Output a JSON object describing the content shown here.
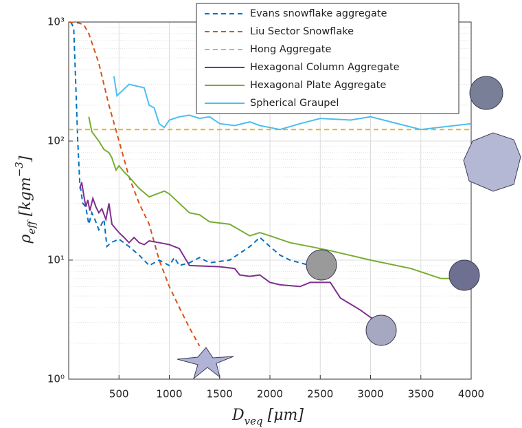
{
  "chart_data": {
    "type": "line",
    "x_label": [
      "D",
      "veq",
      " [μm]"
    ],
    "y_label": [
      "ρ",
      "eff",
      " [kgm",
      "−3",
      "]"
    ],
    "xlim": [
      0,
      4000
    ],
    "xticks": [
      500,
      1000,
      1500,
      2000,
      2500,
      3000,
      3500,
      4000
    ],
    "ylim": [
      1,
      1000
    ],
    "yscale": "log",
    "yticks": [
      {
        "value": 1,
        "label": "10⁰"
      },
      {
        "value": 10,
        "label": "10¹"
      },
      {
        "value": 100,
        "label": "10²"
      },
      {
        "value": 1000,
        "label": "10³"
      }
    ],
    "grid": true,
    "legend": "upper right",
    "series": [
      {
        "name": "Evans snowflake aggregate",
        "color": "#0072bd",
        "linestyle": "dashed",
        "x": [
          20,
          50,
          70,
          90,
          110,
          140,
          170,
          200,
          230,
          260,
          300,
          350,
          380,
          420,
          500,
          600,
          700,
          800,
          900,
          1000,
          1050,
          1100,
          1200,
          1300,
          1400,
          1600,
          1800,
          1900,
          2000,
          2100,
          2200,
          2300,
          2400
        ],
        "values": [
          1000,
          900,
          300,
          100,
          45,
          30,
          28,
          20,
          25,
          22,
          18,
          22,
          13,
          14,
          15,
          13,
          11,
          9,
          10,
          9,
          10.5,
          9,
          9.5,
          10.5,
          9.5,
          10,
          13,
          15.5,
          13,
          11,
          10,
          9.5,
          9
        ]
      },
      {
        "name": "Liu Sector Snowflake",
        "color": "#d95319",
        "linestyle": "dashed",
        "x": [
          0,
          100,
          150,
          200,
          300,
          400,
          500,
          600,
          700,
          800,
          900,
          1000,
          1100,
          1200,
          1300
        ],
        "values": [
          1000,
          980,
          950,
          800,
          450,
          200,
          100,
          50,
          30,
          20,
          10,
          6,
          4,
          2.7,
          1.9
        ]
      },
      {
        "name": "Hong Aggregate",
        "color": "#edb120",
        "linestyle": "dashed",
        "x": [
          0,
          4000
        ],
        "values": [
          125,
          125
        ]
      },
      {
        "name": "Hexagonal Column Aggregate",
        "color": "#7e2f8e",
        "linestyle": "solid",
        "x": [
          110,
          130,
          150,
          170,
          190,
          210,
          240,
          270,
          300,
          330,
          370,
          400,
          430,
          500,
          550,
          600,
          650,
          700,
          750,
          800,
          900,
          1000,
          1100,
          1200,
          1500,
          1650,
          1700,
          1800,
          1900,
          2000,
          2100,
          2300,
          2400,
          2600,
          2700,
          2900,
          3000,
          3100
        ],
        "values": [
          40,
          45,
          35,
          28,
          32,
          26,
          33,
          28,
          25,
          27,
          22,
          30,
          20,
          17,
          15.5,
          14,
          15.5,
          14,
          13.5,
          14.5,
          14,
          13.5,
          12.5,
          9,
          8.8,
          8.5,
          7.5,
          7.3,
          7.5,
          6.5,
          6.2,
          6,
          6.5,
          6.5,
          4.8,
          3.8,
          3.3,
          3
        ]
      },
      {
        "name": "Hexagonal Plate Aggregate",
        "color": "#77ac30",
        "linestyle": "solid",
        "x": [
          200,
          230,
          300,
          350,
          400,
          430,
          470,
          500,
          550,
          600,
          700,
          800,
          950,
          1000,
          1200,
          1300,
          1400,
          1600,
          1800,
          1900,
          2000,
          2200,
          2400,
          2600,
          3000,
          3400,
          3700,
          4000
        ],
        "values": [
          160,
          120,
          100,
          85,
          80,
          72,
          57,
          62,
          55,
          50,
          40,
          34,
          38,
          36,
          25,
          24,
          21,
          20,
          16,
          17,
          16,
          14,
          13,
          12,
          10,
          8.5,
          7,
          7
        ]
      },
      {
        "name": "Spherical Graupel",
        "color": "#4dbeee",
        "linestyle": "solid",
        "x": [
          450,
          480,
          600,
          750,
          800,
          850,
          900,
          950,
          1000,
          1100,
          1200,
          1300,
          1400,
          1500,
          1650,
          1800,
          1900,
          2100,
          2300,
          2500,
          2800,
          3000,
          3200,
          3500,
          4000
        ],
        "values": [
          350,
          240,
          300,
          280,
          200,
          190,
          140,
          130,
          150,
          160,
          165,
          155,
          160,
          140,
          135,
          145,
          135,
          125,
          140,
          155,
          150,
          160,
          145,
          125,
          140
        ]
      }
    ]
  }
}
